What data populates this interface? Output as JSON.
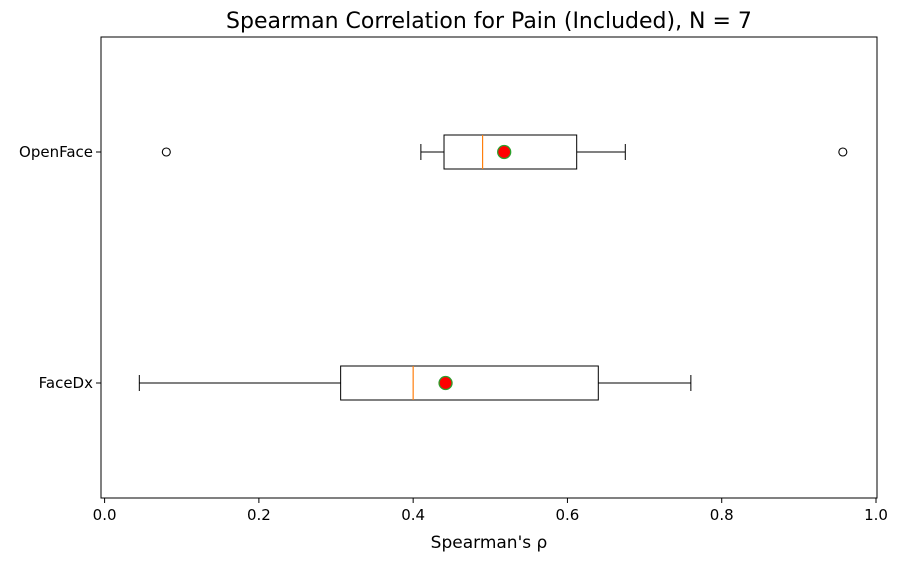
{
  "chart_data": {
    "type": "boxplot",
    "orientation": "horizontal",
    "title": "Spearman Correlation for Pain (Included), N = 7",
    "xlabel": "Spearman's ρ",
    "ylabel": "",
    "xlim": [
      0.0,
      1.0
    ],
    "xticks": [
      0.0,
      0.2,
      0.4,
      0.6,
      0.8,
      1.0
    ],
    "xtick_labels": [
      "0.0",
      "0.2",
      "0.4",
      "0.6",
      "0.8",
      "1.0"
    ],
    "grid": false,
    "categories": [
      "OpenFace",
      "FaceDx"
    ],
    "series": [
      {
        "category": "OpenFace",
        "whisker_low": 0.41,
        "q1": 0.44,
        "median": 0.49,
        "q3": 0.612,
        "whisker_high": 0.675,
        "mean": 0.518,
        "outliers": [
          0.08,
          0.957
        ]
      },
      {
        "category": "FaceDx",
        "whisker_low": 0.045,
        "q1": 0.306,
        "median": 0.4,
        "q3": 0.64,
        "whisker_high": 0.76,
        "mean": 0.442,
        "outliers": []
      }
    ],
    "colors": {
      "box": "#000000",
      "median": "#ff7f0e",
      "mean_fill": "#ff0000",
      "mean_edge": "#2ca02c"
    }
  }
}
